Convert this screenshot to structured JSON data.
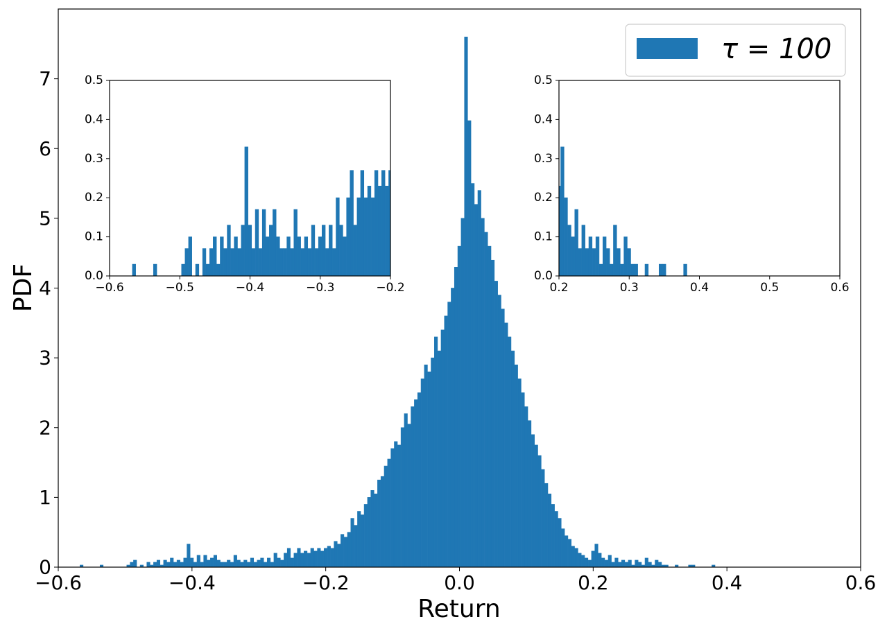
{
  "chart_data": {
    "type": "histogram",
    "xlabel": "Return",
    "ylabel": "PDF",
    "xlim": [
      -0.6,
      0.6
    ],
    "ylim": [
      0,
      8
    ],
    "xticks": [
      "−0.6",
      "−0.4",
      "−0.2",
      "0.0",
      "0.2",
      "0.4",
      "0.6"
    ],
    "yticks": [
      "0",
      "1",
      "2",
      "3",
      "4",
      "5",
      "6",
      "7"
    ],
    "color": "#1f77b4",
    "legend": {
      "label": "τ = 100",
      "placement": "top-right"
    },
    "grid": false,
    "series": [
      {
        "name": "τ = 100",
        "bins": [
          [
            -0.565,
            0.03
          ],
          [
            -0.535,
            0.03
          ],
          [
            -0.495,
            0.03
          ],
          [
            -0.49,
            0.07
          ],
          [
            -0.485,
            0.1
          ],
          [
            -0.475,
            0.03
          ],
          [
            -0.465,
            0.07
          ],
          [
            -0.46,
            0.03
          ],
          [
            -0.455,
            0.07
          ],
          [
            -0.45,
            0.1
          ],
          [
            -0.445,
            0.03
          ],
          [
            -0.44,
            0.1
          ],
          [
            -0.435,
            0.07
          ],
          [
            -0.43,
            0.13
          ],
          [
            -0.425,
            0.07
          ],
          [
            -0.42,
            0.1
          ],
          [
            -0.415,
            0.07
          ],
          [
            -0.41,
            0.13
          ],
          [
            -0.405,
            0.33
          ],
          [
            -0.4,
            0.13
          ],
          [
            -0.395,
            0.07
          ],
          [
            -0.39,
            0.17
          ],
          [
            -0.385,
            0.07
          ],
          [
            -0.38,
            0.17
          ],
          [
            -0.375,
            0.1
          ],
          [
            -0.37,
            0.13
          ],
          [
            -0.365,
            0.17
          ],
          [
            -0.36,
            0.1
          ],
          [
            -0.355,
            0.07
          ],
          [
            -0.35,
            0.07
          ],
          [
            -0.345,
            0.1
          ],
          [
            -0.34,
            0.07
          ],
          [
            -0.335,
            0.17
          ],
          [
            -0.33,
            0.1
          ],
          [
            -0.325,
            0.07
          ],
          [
            -0.32,
            0.1
          ],
          [
            -0.315,
            0.07
          ],
          [
            -0.31,
            0.13
          ],
          [
            -0.305,
            0.07
          ],
          [
            -0.3,
            0.1
          ],
          [
            -0.295,
            0.13
          ],
          [
            -0.29,
            0.07
          ],
          [
            -0.285,
            0.13
          ],
          [
            -0.28,
            0.07
          ],
          [
            -0.275,
            0.2
          ],
          [
            -0.27,
            0.13
          ],
          [
            -0.265,
            0.1
          ],
          [
            -0.26,
            0.2
          ],
          [
            -0.255,
            0.27
          ],
          [
            -0.25,
            0.13
          ],
          [
            -0.245,
            0.2
          ],
          [
            -0.24,
            0.27
          ],
          [
            -0.235,
            0.2
          ],
          [
            -0.23,
            0.23
          ],
          [
            -0.225,
            0.2
          ],
          [
            -0.22,
            0.27
          ],
          [
            -0.215,
            0.23
          ],
          [
            -0.21,
            0.27
          ],
          [
            -0.205,
            0.23
          ],
          [
            -0.2,
            0.27
          ],
          [
            -0.195,
            0.3
          ],
          [
            -0.19,
            0.27
          ],
          [
            -0.185,
            0.37
          ],
          [
            -0.18,
            0.33
          ],
          [
            -0.175,
            0.47
          ],
          [
            -0.17,
            0.43
          ],
          [
            -0.165,
            0.5
          ],
          [
            -0.16,
            0.7
          ],
          [
            -0.155,
            0.6
          ],
          [
            -0.15,
            0.8
          ],
          [
            -0.145,
            0.75
          ],
          [
            -0.14,
            0.9
          ],
          [
            -0.135,
            1.0
          ],
          [
            -0.13,
            1.1
          ],
          [
            -0.125,
            1.05
          ],
          [
            -0.12,
            1.25
          ],
          [
            -0.115,
            1.3
          ],
          [
            -0.11,
            1.45
          ],
          [
            -0.105,
            1.55
          ],
          [
            -0.1,
            1.7
          ],
          [
            -0.095,
            1.8
          ],
          [
            -0.09,
            1.75
          ],
          [
            -0.085,
            2.0
          ],
          [
            -0.08,
            2.2
          ],
          [
            -0.075,
            2.05
          ],
          [
            -0.07,
            2.3
          ],
          [
            -0.065,
            2.4
          ],
          [
            -0.06,
            2.5
          ],
          [
            -0.055,
            2.7
          ],
          [
            -0.05,
            2.9
          ],
          [
            -0.045,
            2.8
          ],
          [
            -0.04,
            3.0
          ],
          [
            -0.035,
            3.3
          ],
          [
            -0.03,
            3.1
          ],
          [
            -0.025,
            3.4
          ],
          [
            -0.02,
            3.6
          ],
          [
            -0.015,
            3.8
          ],
          [
            -0.01,
            4.0
          ],
          [
            -0.005,
            4.3
          ],
          [
            0.0,
            4.6
          ],
          [
            0.005,
            5.0
          ],
          [
            0.01,
            7.6
          ],
          [
            0.015,
            6.4
          ],
          [
            0.02,
            5.5
          ],
          [
            0.025,
            5.2
          ],
          [
            0.03,
            5.4
          ],
          [
            0.035,
            5.0
          ],
          [
            0.04,
            4.8
          ],
          [
            0.045,
            4.6
          ],
          [
            0.05,
            4.4
          ],
          [
            0.055,
            4.1
          ],
          [
            0.06,
            3.9
          ],
          [
            0.065,
            3.7
          ],
          [
            0.07,
            3.5
          ],
          [
            0.075,
            3.3
          ],
          [
            0.08,
            3.1
          ],
          [
            0.085,
            2.9
          ],
          [
            0.09,
            2.7
          ],
          [
            0.095,
            2.5
          ],
          [
            0.1,
            2.3
          ],
          [
            0.105,
            2.1
          ],
          [
            0.11,
            1.9
          ],
          [
            0.115,
            1.75
          ],
          [
            0.12,
            1.6
          ],
          [
            0.125,
            1.4
          ],
          [
            0.13,
            1.2
          ],
          [
            0.135,
            1.05
          ],
          [
            0.14,
            0.9
          ],
          [
            0.145,
            0.8
          ],
          [
            0.15,
            0.7
          ],
          [
            0.155,
            0.55
          ],
          [
            0.16,
            0.45
          ],
          [
            0.165,
            0.4
          ],
          [
            0.17,
            0.3
          ],
          [
            0.175,
            0.27
          ],
          [
            0.18,
            0.2
          ],
          [
            0.185,
            0.17
          ],
          [
            0.19,
            0.13
          ],
          [
            0.195,
            0.1
          ],
          [
            0.2,
            0.23
          ],
          [
            0.205,
            0.33
          ],
          [
            0.21,
            0.2
          ],
          [
            0.215,
            0.13
          ],
          [
            0.22,
            0.1
          ],
          [
            0.225,
            0.17
          ],
          [
            0.23,
            0.07
          ],
          [
            0.235,
            0.13
          ],
          [
            0.24,
            0.07
          ],
          [
            0.245,
            0.1
          ],
          [
            0.25,
            0.07
          ],
          [
            0.255,
            0.1
          ],
          [
            0.26,
            0.03
          ],
          [
            0.265,
            0.1
          ],
          [
            0.27,
            0.07
          ],
          [
            0.275,
            0.03
          ],
          [
            0.28,
            0.13
          ],
          [
            0.285,
            0.07
          ],
          [
            0.29,
            0.03
          ],
          [
            0.295,
            0.1
          ],
          [
            0.3,
            0.07
          ],
          [
            0.305,
            0.03
          ],
          [
            0.31,
            0.03
          ],
          [
            0.325,
            0.03
          ],
          [
            0.345,
            0.03
          ],
          [
            0.35,
            0.03
          ],
          [
            0.38,
            0.03
          ]
        ]
      }
    ],
    "insets": [
      {
        "xlim": [
          -0.6,
          -0.2
        ],
        "ylim": [
          0,
          0.5
        ],
        "xticks": [
          "−0.6",
          "−0.5",
          "−0.4",
          "−0.3",
          "−0.2"
        ],
        "yticks": [
          "0.0",
          "0.1",
          "0.2",
          "0.3",
          "0.4",
          "0.5"
        ],
        "placement": "top-left"
      },
      {
        "xlim": [
          0.2,
          0.6
        ],
        "ylim": [
          0,
          0.5
        ],
        "xticks": [
          "0.2",
          "0.3",
          "0.4",
          "0.5",
          "0.6"
        ],
        "yticks": [
          "0.0",
          "0.1",
          "0.2",
          "0.3",
          "0.4",
          "0.5"
        ],
        "placement": "top-right"
      }
    ]
  }
}
